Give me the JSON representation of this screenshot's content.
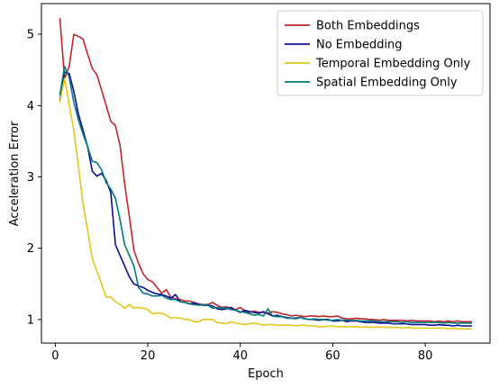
{
  "chart_data": {
    "type": "line",
    "title": "",
    "xlabel": "Epoch",
    "ylabel": "Acceleration Error",
    "xlim": [
      -3,
      94
    ],
    "ylim": [
      0.67,
      5.43
    ],
    "xticks": [
      0,
      20,
      40,
      60,
      80
    ],
    "yticks": [
      1,
      2,
      3,
      4,
      5
    ],
    "grid": false,
    "legend_position": "top-right",
    "series": [
      {
        "name": "Both Embeddings",
        "color": "#c1272d",
        "x": [
          1,
          2,
          3,
          4,
          5,
          6,
          7,
          8,
          9,
          10,
          11,
          12,
          13,
          14,
          15,
          16,
          17,
          18,
          19,
          20,
          21,
          22,
          23,
          24,
          25,
          26,
          27,
          28,
          29,
          30,
          31,
          32,
          33,
          34,
          35,
          36,
          37,
          38,
          39,
          40,
          41,
          42,
          43,
          44,
          45,
          46,
          47,
          48,
          49,
          50,
          51,
          52,
          53,
          54,
          55,
          56,
          57,
          58,
          59,
          60,
          61,
          62,
          63,
          64,
          65,
          66,
          67,
          68,
          69,
          70,
          71,
          72,
          73,
          74,
          75,
          76,
          77,
          78,
          79,
          80,
          81,
          82,
          83,
          84,
          85,
          86,
          87,
          88,
          89,
          90
        ],
        "y": [
          5.22,
          4.38,
          4.55,
          5.0,
          4.97,
          4.93,
          4.72,
          4.52,
          4.43,
          4.22,
          4.0,
          3.78,
          3.72,
          3.44,
          2.9,
          2.45,
          1.97,
          1.79,
          1.64,
          1.56,
          1.53,
          1.45,
          1.37,
          1.42,
          1.31,
          1.29,
          1.28,
          1.26,
          1.26,
          1.24,
          1.22,
          1.21,
          1.21,
          1.24,
          1.2,
          1.17,
          1.18,
          1.15,
          1.14,
          1.17,
          1.12,
          1.1,
          1.12,
          1.1,
          1.1,
          1.09,
          1.11,
          1.1,
          1.08,
          1.07,
          1.05,
          1.06,
          1.05,
          1.04,
          1.05,
          1.05,
          1.04,
          1.05,
          1.04,
          1.04,
          1.05,
          1.02,
          1.01,
          1.01,
          1.02,
          1.01,
          1.01,
          1.0,
          1.0,
          0.99,
          1.0,
          0.99,
          0.99,
          0.99,
          0.99,
          0.98,
          0.99,
          0.98,
          0.98,
          0.98,
          0.98,
          0.97,
          0.98,
          0.97,
          0.98,
          0.97,
          0.98,
          0.97,
          0.97,
          0.97
        ]
      },
      {
        "name": "No Embedding",
        "color": "#0b0b9c",
        "x": [
          1,
          2,
          3,
          4,
          5,
          6,
          7,
          8,
          9,
          10,
          11,
          12,
          13,
          14,
          15,
          16,
          17,
          18,
          19,
          20,
          21,
          22,
          23,
          24,
          25,
          26,
          27,
          28,
          29,
          30,
          31,
          32,
          33,
          34,
          35,
          36,
          37,
          38,
          39,
          40,
          41,
          42,
          43,
          44,
          45,
          46,
          47,
          48,
          49,
          50,
          51,
          52,
          53,
          54,
          55,
          56,
          57,
          58,
          59,
          60,
          61,
          62,
          63,
          64,
          65,
          66,
          67,
          68,
          69,
          70,
          71,
          72,
          73,
          74,
          75,
          76,
          77,
          78,
          79,
          80,
          81,
          82,
          83,
          84,
          85,
          86,
          87,
          88,
          89,
          90
        ],
        "y": [
          4.07,
          4.47,
          4.45,
          4.2,
          3.88,
          3.65,
          3.42,
          3.08,
          3.01,
          3.05,
          2.95,
          2.78,
          2.05,
          1.9,
          1.75,
          1.6,
          1.5,
          1.47,
          1.45,
          1.41,
          1.38,
          1.36,
          1.35,
          1.33,
          1.3,
          1.35,
          1.25,
          1.24,
          1.22,
          1.23,
          1.21,
          1.2,
          1.2,
          1.19,
          1.15,
          1.14,
          1.15,
          1.17,
          1.13,
          1.1,
          1.13,
          1.11,
          1.1,
          1.09,
          1.11,
          1.08,
          1.05,
          1.06,
          1.04,
          1.03,
          1.02,
          1.02,
          1.03,
          1.01,
          1.0,
          1.0,
          0.99,
          1.0,
          1.0,
          0.98,
          0.98,
          0.99,
          0.97,
          0.98,
          0.98,
          0.97,
          0.96,
          0.96,
          0.96,
          0.95,
          0.95,
          0.95,
          0.94,
          0.94,
          0.94,
          0.94,
          0.93,
          0.93,
          0.93,
          0.93,
          0.92,
          0.92,
          0.93,
          0.92,
          0.92,
          0.91,
          0.92,
          0.91,
          0.91,
          0.91
        ]
      },
      {
        "name": "Temporal Embedding Only",
        "color": "#e6c619",
        "x": [
          1,
          2,
          3,
          4,
          5,
          6,
          7,
          8,
          9,
          10,
          11,
          12,
          13,
          14,
          15,
          16,
          17,
          18,
          19,
          20,
          21,
          22,
          23,
          24,
          25,
          26,
          27,
          28,
          29,
          30,
          31,
          32,
          33,
          34,
          35,
          36,
          37,
          38,
          39,
          40,
          41,
          42,
          43,
          44,
          45,
          46,
          47,
          48,
          49,
          50,
          51,
          52,
          53,
          54,
          55,
          56,
          57,
          58,
          59,
          60,
          61,
          62,
          63,
          64,
          65,
          66,
          67,
          68,
          69,
          70,
          71,
          72,
          73,
          74,
          75,
          76,
          77,
          78,
          79,
          80,
          81,
          82,
          83,
          84,
          85,
          86,
          87,
          88,
          89,
          90
        ],
        "y": [
          4.05,
          4.38,
          4.02,
          3.65,
          3.15,
          2.62,
          2.25,
          1.85,
          1.68,
          1.5,
          1.31,
          1.32,
          1.25,
          1.21,
          1.16,
          1.21,
          1.16,
          1.17,
          1.16,
          1.14,
          1.08,
          1.09,
          1.09,
          1.06,
          1.02,
          1.03,
          1.02,
          1.0,
          1.0,
          0.97,
          0.97,
          1.0,
          1.0,
          1.0,
          0.96,
          0.95,
          0.94,
          0.97,
          0.95,
          0.94,
          0.93,
          0.94,
          0.95,
          0.94,
          0.92,
          0.93,
          0.93,
          0.92,
          0.92,
          0.92,
          0.92,
          0.91,
          0.92,
          0.92,
          0.91,
          0.91,
          0.9,
          0.9,
          0.91,
          0.91,
          0.9,
          0.9,
          0.9,
          0.9,
          0.9,
          0.89,
          0.9,
          0.89,
          0.89,
          0.9,
          0.89,
          0.89,
          0.89,
          0.89,
          0.88,
          0.89,
          0.88,
          0.88,
          0.88,
          0.88,
          0.88,
          0.88,
          0.88,
          0.88,
          0.87,
          0.88,
          0.87,
          0.87,
          0.87,
          0.87
        ]
      },
      {
        "name": "Spatial Embedding Only",
        "color": "#007a7a",
        "x": [
          1,
          2,
          3,
          4,
          5,
          6,
          7,
          8,
          9,
          10,
          11,
          12,
          13,
          14,
          15,
          16,
          17,
          18,
          19,
          20,
          21,
          22,
          23,
          24,
          25,
          26,
          27,
          28,
          29,
          30,
          31,
          32,
          33,
          34,
          35,
          36,
          37,
          38,
          39,
          40,
          41,
          42,
          43,
          44,
          45,
          46,
          47,
          48,
          49,
          50,
          51,
          52,
          53,
          54,
          55,
          56,
          57,
          58,
          59,
          60,
          61,
          62,
          63,
          64,
          65,
          66,
          67,
          68,
          69,
          70,
          71,
          72,
          73,
          74,
          75,
          76,
          77,
          78,
          79,
          80,
          81,
          82,
          83,
          84,
          85,
          86,
          87,
          88,
          89,
          90
        ],
        "y": [
          4.15,
          4.55,
          4.4,
          4.05,
          3.8,
          3.6,
          3.42,
          3.22,
          3.2,
          3.1,
          2.92,
          2.83,
          2.7,
          2.4,
          2.05,
          1.9,
          1.75,
          1.45,
          1.37,
          1.36,
          1.33,
          1.33,
          1.34,
          1.3,
          1.28,
          1.28,
          1.25,
          1.24,
          1.22,
          1.21,
          1.2,
          1.21,
          1.2,
          1.16,
          1.17,
          1.16,
          1.16,
          1.14,
          1.13,
          1.11,
          1.1,
          1.08,
          1.06,
          1.07,
          1.05,
          1.15,
          1.05,
          1.04,
          1.04,
          1.02,
          1.02,
          1.01,
          1.03,
          1.01,
          1.0,
          1.01,
          1.0,
          1.0,
          0.99,
          0.99,
          1.0,
          0.99,
          0.99,
          0.99,
          0.99,
          0.98,
          0.98,
          0.98,
          0.98,
          0.97,
          0.97,
          0.97,
          0.97,
          0.97,
          0.96,
          0.97,
          0.96,
          0.96,
          0.96,
          0.96,
          0.96,
          0.96,
          0.96,
          0.95,
          0.96,
          0.95,
          0.95,
          0.95,
          0.95,
          0.95
        ]
      }
    ]
  }
}
